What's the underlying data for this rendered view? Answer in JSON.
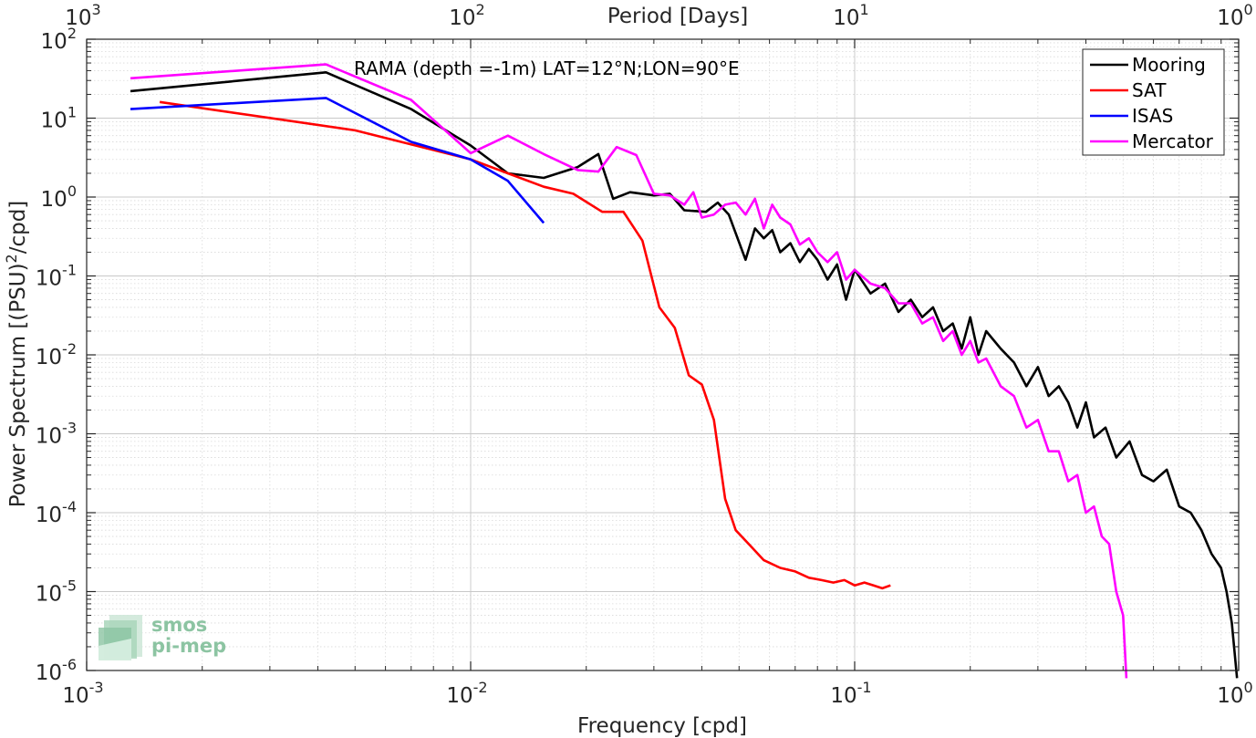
{
  "chart_data": {
    "type": "line",
    "xscale": "log",
    "yscale": "log",
    "xlim": [
      0.001,
      1
    ],
    "ylim": [
      1e-06,
      100
    ],
    "xlabel": "Frequency [cpd]",
    "ylabel": "Power Spectrum [(PSU)",
    "ylabel_exp": "2",
    "ylabel_tail": "/cpd]",
    "top_axis_label": "Period [Days]",
    "annotation": "RAMA (depth =-1m) LAT=12°N;LON=90°E",
    "grid": true,
    "minor_grid": true,
    "legend_position": "top-right",
    "x_ticks": [
      {
        "base": "10",
        "exp": "-3"
      },
      {
        "base": "10",
        "exp": "-2"
      },
      {
        "base": "10",
        "exp": "-1"
      },
      {
        "base": "10",
        "exp": "0"
      }
    ],
    "top_ticks": [
      {
        "base": "10",
        "exp": "3"
      },
      {
        "base": "10",
        "exp": "2"
      },
      {
        "base": "10",
        "exp": "1"
      },
      {
        "base": "10",
        "exp": "0"
      }
    ],
    "y_ticks": [
      {
        "base": "10",
        "exp": "2"
      },
      {
        "base": "10",
        "exp": "1"
      },
      {
        "base": "10",
        "exp": "0"
      },
      {
        "base": "10",
        "exp": "-1"
      },
      {
        "base": "10",
        "exp": "-2"
      },
      {
        "base": "10",
        "exp": "-3"
      },
      {
        "base": "10",
        "exp": "-4"
      },
      {
        "base": "10",
        "exp": "-5"
      },
      {
        "base": "10",
        "exp": "-6"
      }
    ],
    "series": [
      {
        "name": "Mooring",
        "color": "#000000",
        "points": [
          [
            0.0013,
            22
          ],
          [
            0.0042,
            38
          ],
          [
            0.007,
            13
          ],
          [
            0.01,
            4.5
          ],
          [
            0.0125,
            2
          ],
          [
            0.0155,
            1.75
          ],
          [
            0.019,
            2.4
          ],
          [
            0.0215,
            3.5
          ],
          [
            0.0235,
            0.95
          ],
          [
            0.026,
            1.15
          ],
          [
            0.03,
            1.05
          ],
          [
            0.033,
            1.1
          ],
          [
            0.036,
            0.68
          ],
          [
            0.041,
            0.65
          ],
          [
            0.044,
            0.85
          ],
          [
            0.047,
            0.6
          ],
          [
            0.052,
            0.16
          ],
          [
            0.055,
            0.4
          ],
          [
            0.058,
            0.3
          ],
          [
            0.061,
            0.38
          ],
          [
            0.064,
            0.2
          ],
          [
            0.068,
            0.26
          ],
          [
            0.072,
            0.15
          ],
          [
            0.076,
            0.22
          ],
          [
            0.08,
            0.16
          ],
          [
            0.085,
            0.09
          ],
          [
            0.09,
            0.14
          ],
          [
            0.095,
            0.05
          ],
          [
            0.1,
            0.12
          ],
          [
            0.11,
            0.06
          ],
          [
            0.12,
            0.08
          ],
          [
            0.13,
            0.035
          ],
          [
            0.14,
            0.05
          ],
          [
            0.15,
            0.03
          ],
          [
            0.16,
            0.04
          ],
          [
            0.17,
            0.02
          ],
          [
            0.18,
            0.025
          ],
          [
            0.19,
            0.012
          ],
          [
            0.2,
            0.03
          ],
          [
            0.21,
            0.01
          ],
          [
            0.22,
            0.02
          ],
          [
            0.24,
            0.012
          ],
          [
            0.26,
            0.008
          ],
          [
            0.28,
            0.004
          ],
          [
            0.3,
            0.007
          ],
          [
            0.32,
            0.003
          ],
          [
            0.34,
            0.004
          ],
          [
            0.36,
            0.0025
          ],
          [
            0.38,
            0.0012
          ],
          [
            0.4,
            0.0025
          ],
          [
            0.42,
            0.0009
          ],
          [
            0.45,
            0.0012
          ],
          [
            0.48,
            0.0005
          ],
          [
            0.52,
            0.0008
          ],
          [
            0.56,
            0.0003
          ],
          [
            0.6,
            0.00025
          ],
          [
            0.65,
            0.00035
          ],
          [
            0.7,
            0.00012
          ],
          [
            0.75,
            0.0001
          ],
          [
            0.8,
            6e-05
          ],
          [
            0.85,
            3e-05
          ],
          [
            0.9,
            2e-05
          ],
          [
            0.93,
            1e-05
          ],
          [
            0.96,
            4e-06
          ],
          [
            0.99,
            8e-07
          ]
        ]
      },
      {
        "name": "SAT",
        "color": "#ff0000",
        "points": [
          [
            0.00155,
            16
          ],
          [
            0.005,
            7
          ],
          [
            0.01,
            3
          ],
          [
            0.0125,
            2
          ],
          [
            0.0155,
            1.35
          ],
          [
            0.0185,
            1.1
          ],
          [
            0.022,
            0.65
          ],
          [
            0.025,
            0.65
          ],
          [
            0.028,
            0.28
          ],
          [
            0.031,
            0.04
          ],
          [
            0.034,
            0.022
          ],
          [
            0.037,
            0.0055
          ],
          [
            0.04,
            0.0042
          ],
          [
            0.043,
            0.0015
          ],
          [
            0.046,
            0.00015
          ],
          [
            0.049,
            6e-05
          ],
          [
            0.053,
            4e-05
          ],
          [
            0.058,
            2.5e-05
          ],
          [
            0.064,
            2e-05
          ],
          [
            0.07,
            1.8e-05
          ],
          [
            0.076,
            1.5e-05
          ],
          [
            0.082,
            1.4e-05
          ],
          [
            0.088,
            1.3e-05
          ],
          [
            0.094,
            1.4e-05
          ],
          [
            0.1,
            1.2e-05
          ],
          [
            0.106,
            1.3e-05
          ],
          [
            0.112,
            1.2e-05
          ],
          [
            0.118,
            1.1e-05
          ],
          [
            0.124,
            1.2e-05
          ]
        ]
      },
      {
        "name": "ISAS",
        "color": "#0000ff",
        "points": [
          [
            0.0013,
            13
          ],
          [
            0.0042,
            18
          ],
          [
            0.007,
            5
          ],
          [
            0.01,
            3
          ],
          [
            0.0125,
            1.6
          ],
          [
            0.0155,
            0.47
          ]
        ]
      },
      {
        "name": "Mercator",
        "color": "#ff00ff",
        "points": [
          [
            0.0013,
            32
          ],
          [
            0.0042,
            48
          ],
          [
            0.007,
            17
          ],
          [
            0.01,
            3.6
          ],
          [
            0.0125,
            6
          ],
          [
            0.0155,
            3.5
          ],
          [
            0.019,
            2.2
          ],
          [
            0.0215,
            2.1
          ],
          [
            0.024,
            4.3
          ],
          [
            0.027,
            3.4
          ],
          [
            0.03,
            1.1
          ],
          [
            0.033,
            1.05
          ],
          [
            0.036,
            0.8
          ],
          [
            0.038,
            1.15
          ],
          [
            0.04,
            0.55
          ],
          [
            0.043,
            0.6
          ],
          [
            0.046,
            0.8
          ],
          [
            0.049,
            0.85
          ],
          [
            0.052,
            0.6
          ],
          [
            0.055,
            0.95
          ],
          [
            0.058,
            0.4
          ],
          [
            0.061,
            0.8
          ],
          [
            0.064,
            0.55
          ],
          [
            0.068,
            0.45
          ],
          [
            0.072,
            0.25
          ],
          [
            0.076,
            0.3
          ],
          [
            0.08,
            0.2
          ],
          [
            0.085,
            0.15
          ],
          [
            0.09,
            0.2
          ],
          [
            0.095,
            0.09
          ],
          [
            0.1,
            0.12
          ],
          [
            0.11,
            0.08
          ],
          [
            0.12,
            0.07
          ],
          [
            0.13,
            0.045
          ],
          [
            0.14,
            0.045
          ],
          [
            0.15,
            0.025
          ],
          [
            0.16,
            0.03
          ],
          [
            0.17,
            0.015
          ],
          [
            0.18,
            0.02
          ],
          [
            0.19,
            0.01
          ],
          [
            0.2,
            0.015
          ],
          [
            0.21,
            0.008
          ],
          [
            0.22,
            0.009
          ],
          [
            0.24,
            0.004
          ],
          [
            0.26,
            0.003
          ],
          [
            0.28,
            0.0012
          ],
          [
            0.3,
            0.0015
          ],
          [
            0.32,
            0.0006
          ],
          [
            0.34,
            0.0006
          ],
          [
            0.36,
            0.00025
          ],
          [
            0.38,
            0.0003
          ],
          [
            0.4,
            0.0001
          ],
          [
            0.42,
            0.00012
          ],
          [
            0.44,
            5e-05
          ],
          [
            0.46,
            4e-05
          ],
          [
            0.48,
            1e-05
          ],
          [
            0.5,
            5e-06
          ],
          [
            0.51,
            8e-07
          ]
        ]
      }
    ]
  },
  "watermark": {
    "line1": "smos",
    "line2": "pi-mep",
    "color": "#8cc4a2"
  }
}
